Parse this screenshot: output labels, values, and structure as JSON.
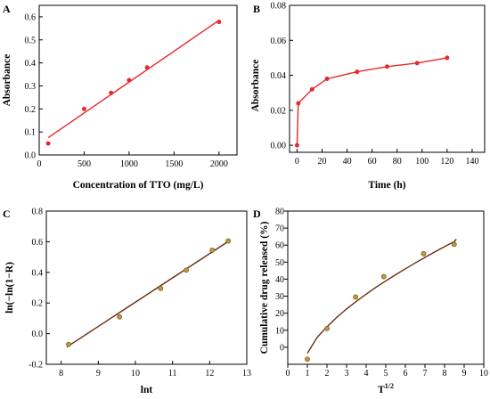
{
  "chart_data": [
    {
      "id": "A",
      "panel_label": "A",
      "type": "scatter",
      "xlabel": "Concentration of TTO (mg/L)",
      "ylabel": "Absorbance",
      "xlim": [
        0,
        2200
      ],
      "ylim": [
        0.0,
        0.65
      ],
      "xticks": [
        0,
        500,
        1000,
        1500,
        2000
      ],
      "yticks": [
        0.0,
        0.1,
        0.2,
        0.3,
        0.4,
        0.5,
        0.6
      ],
      "ytick_decimals": 1,
      "series": [
        {
          "values": [
            [
              100,
              0.05
            ],
            [
              500,
              0.2
            ],
            [
              800,
              0.27
            ],
            [
              1000,
              0.325
            ],
            [
              1200,
              0.38
            ],
            [
              2000,
              0.578
            ]
          ]
        }
      ],
      "fit_line": {
        "kind": "linear",
        "points": [
          [
            100,
            0.075
          ],
          [
            2000,
            0.585
          ]
        ]
      },
      "colors": {
        "fit": "#e8282b",
        "marker": "#e8282b"
      }
    },
    {
      "id": "B",
      "panel_label": "B",
      "type": "line",
      "xlabel": "Time (h)",
      "ylabel": "Absorbance",
      "xlim": [
        -6,
        150
      ],
      "ylim": [
        -0.004,
        0.08
      ],
      "xticks": [
        0,
        20,
        40,
        60,
        80,
        100,
        120,
        140
      ],
      "yticks": [
        0.0,
        0.02,
        0.04,
        0.06,
        0.08
      ],
      "ytick_decimals": 2,
      "series": [
        {
          "values": [
            [
              0,
              0.0
            ],
            [
              1,
              0.024
            ],
            [
              12,
              0.032
            ],
            [
              24,
              0.038
            ],
            [
              48,
              0.042
            ],
            [
              72,
              0.045
            ],
            [
              96,
              0.047
            ],
            [
              120,
              0.05
            ]
          ]
        }
      ],
      "colors": {
        "line": "#e8282b",
        "marker": "#e8282b"
      }
    },
    {
      "id": "C",
      "panel_label": "C",
      "type": "scatter",
      "xlabel": "lnt",
      "ylabel": "ln(−ln(1−R)",
      "xlim": [
        7.6,
        13
      ],
      "ylim": [
        -0.2,
        0.8
      ],
      "xticks": [
        8,
        9,
        10,
        11,
        12,
        13
      ],
      "yticks": [
        -0.2,
        0.0,
        0.2,
        0.4,
        0.6,
        0.8
      ],
      "ytick_decimals": 1,
      "series": [
        {
          "values": [
            [
              8.2,
              -0.07
            ],
            [
              9.57,
              0.11
            ],
            [
              10.68,
              0.295
            ],
            [
              11.37,
              0.415
            ],
            [
              12.07,
              0.545
            ],
            [
              12.5,
              0.605
            ]
          ]
        }
      ],
      "fit_line": {
        "kind": "linear",
        "points": [
          [
            8.15,
            -0.088
          ],
          [
            12.55,
            0.61
          ]
        ]
      },
      "colors": {
        "fit": "#6b2d0f",
        "marker": "#b89b3c"
      }
    },
    {
      "id": "D",
      "panel_label": "D",
      "type": "scatter",
      "xlabel": "T",
      "xlabel_sup": "1/2",
      "ylabel": "Cumulative drug released (%)",
      "xlim": [
        0,
        10
      ],
      "ylim": [
        -10,
        80
      ],
      "xticks": [
        0,
        1,
        2,
        3,
        4,
        5,
        6,
        7,
        8,
        9,
        10
      ],
      "yticks": [
        0,
        10,
        20,
        30,
        40,
        50,
        60,
        70,
        80
      ],
      "ytick_decimals": 0,
      "series": [
        {
          "values": [
            [
              1.0,
              -7.0
            ],
            [
              2.0,
              11.0
            ],
            [
              3.46,
              29.5
            ],
            [
              4.9,
              41.5
            ],
            [
              6.93,
              55.0
            ],
            [
              8.49,
              60.5
            ]
          ]
        }
      ],
      "fit_line": {
        "kind": "curve",
        "points": [
          [
            1.0,
            -3.5
          ],
          [
            1.5,
            5.8
          ],
          [
            2.0,
            12.0
          ],
          [
            2.5,
            17.6
          ],
          [
            3.0,
            22.5
          ],
          [
            3.5,
            27.0
          ],
          [
            4.0,
            31.2
          ],
          [
            4.5,
            35.2
          ],
          [
            5.0,
            39.0
          ],
          [
            5.5,
            42.6
          ],
          [
            6.0,
            46.1
          ],
          [
            6.5,
            49.5
          ],
          [
            7.0,
            52.8
          ],
          [
            7.5,
            56.0
          ],
          [
            8.0,
            59.1
          ],
          [
            8.5,
            62.1
          ],
          [
            8.6,
            63.5
          ]
        ]
      },
      "colors": {
        "fit": "#6b2d0f",
        "marker": "#b89b3c"
      }
    }
  ]
}
